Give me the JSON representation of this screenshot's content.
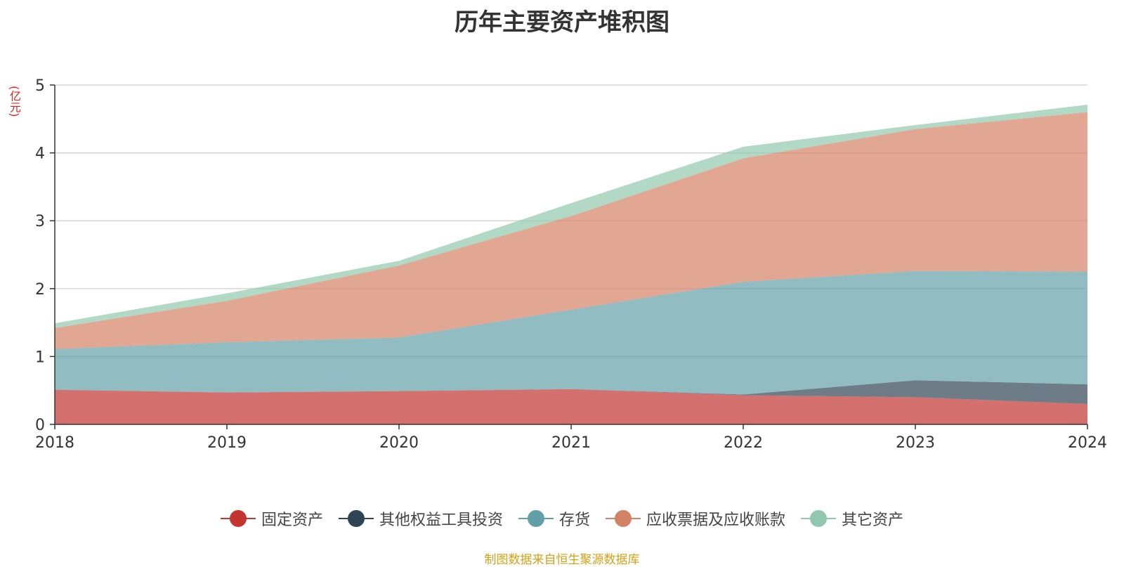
{
  "chart_data": {
    "type": "area",
    "stacked": true,
    "title": "历年主要资产堆积图",
    "unit_label": "(亿元)",
    "source": "制图数据来自恒生聚源数据库",
    "categories": [
      "2018",
      "2019",
      "2020",
      "2021",
      "2022",
      "2023",
      "2024"
    ],
    "ylim": [
      0,
      5
    ],
    "yticks": [
      "0",
      "1",
      "2",
      "3",
      "4",
      "5"
    ],
    "grid": true,
    "legend_position": "bottom",
    "series": [
      {
        "name": "固定资产",
        "color": "#c23531",
        "values": [
          0.51,
          0.47,
          0.49,
          0.52,
          0.43,
          0.4,
          0.3
        ]
      },
      {
        "name": "其他权益工具投资",
        "color": "#2f4554",
        "values": [
          0.0,
          0.0,
          0.0,
          0.0,
          0.01,
          0.25,
          0.29
        ]
      },
      {
        "name": "存货",
        "color": "#61a0a8",
        "values": [
          0.6,
          0.74,
          0.79,
          1.17,
          1.66,
          1.61,
          1.66
        ]
      },
      {
        "name": "应收票据及应收账款",
        "color": "#d48265",
        "values": [
          0.31,
          0.61,
          1.06,
          1.38,
          1.82,
          2.09,
          2.35
        ]
      },
      {
        "name": "其它资产",
        "color": "#91c7ae",
        "values": [
          0.07,
          0.11,
          0.07,
          0.19,
          0.17,
          0.06,
          0.11
        ]
      }
    ]
  }
}
